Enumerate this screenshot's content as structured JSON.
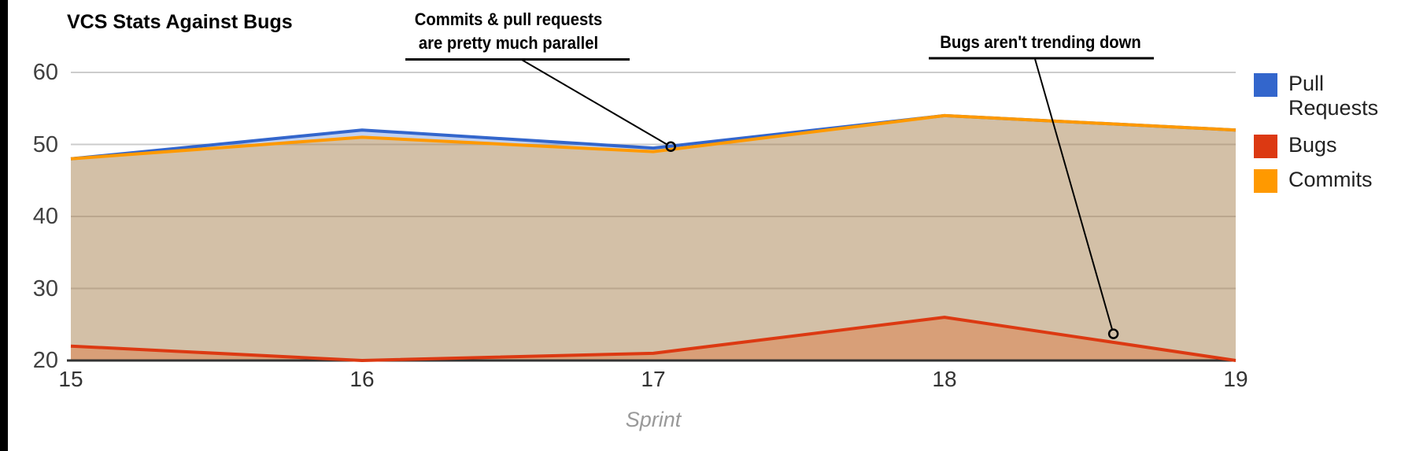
{
  "chart_data": {
    "type": "area",
    "title": "VCS Stats Against Bugs",
    "xlabel": "Sprint",
    "ylabel": "",
    "x": [
      15,
      16,
      17,
      18,
      19
    ],
    "xticks": [
      "15",
      "16",
      "17",
      "18",
      "19"
    ],
    "yticks": [
      "20",
      "30",
      "40",
      "50",
      "60"
    ],
    "ylim": [
      20,
      60
    ],
    "grid": true,
    "legend_position": "right",
    "area_opacity": 0.3,
    "series": [
      {
        "name": "Pull Requests",
        "color": "#3366CC",
        "values": [
          48,
          52,
          49.5,
          54,
          52
        ]
      },
      {
        "name": "Bugs",
        "color": "#DC3912",
        "values": [
          22,
          20,
          21,
          26,
          20
        ]
      },
      {
        "name": "Commits",
        "color": "#FF9900",
        "values": [
          48,
          51,
          49,
          54,
          52
        ]
      }
    ],
    "annotations": [
      {
        "text_lines": [
          "Commits & pull requests",
          "are pretty much parallel"
        ],
        "target": {
          "x": 17.06,
          "y": 49.7
        }
      },
      {
        "text_lines": [
          "Bugs aren't trending down"
        ],
        "target": {
          "x": 18.58,
          "y": 23.7
        }
      }
    ],
    "colors": {
      "gridline": "#cccccc",
      "baseline": "#333333",
      "annotation_line": "#000000",
      "tick_label": "#404040",
      "axis_title": "#999999"
    }
  }
}
